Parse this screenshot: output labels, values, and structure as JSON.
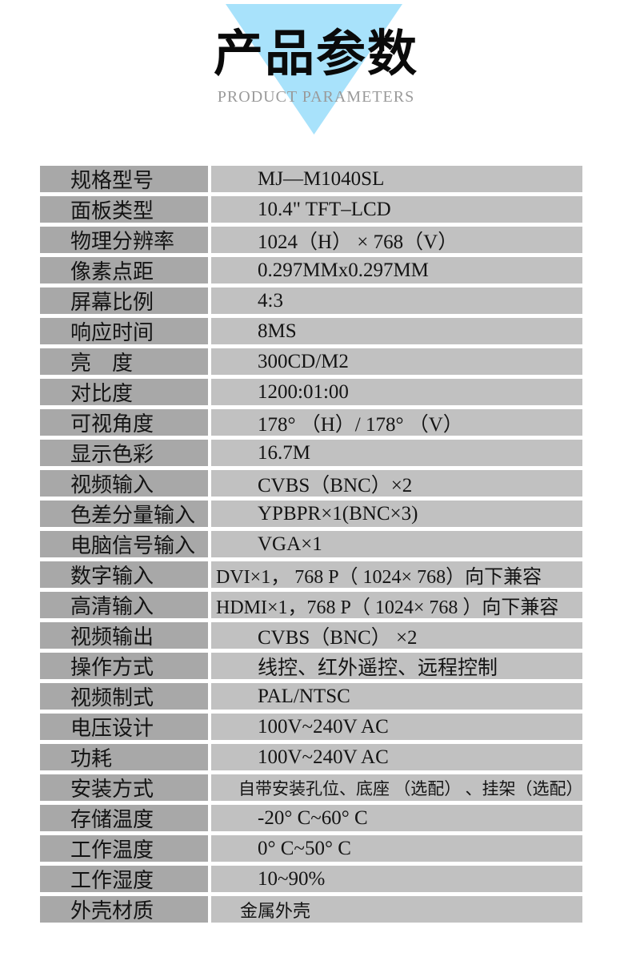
{
  "header": {
    "title": "产品参数",
    "subtitle": "PRODUCT PARAMETERS",
    "triangle_color": "#a8e2fb"
  },
  "table": {
    "label_bg": "#a8a8a8",
    "value_bg": "#c1c1c1",
    "rows": [
      {
        "label": "规格型号",
        "value": "MJ—M1040SL"
      },
      {
        "label": "面板类型",
        "value": "10.4\" TFT–LCD"
      },
      {
        "label": "物理分辨率",
        "value": "1024（H） ×  768（V）"
      },
      {
        "label": "像素点距",
        "value": "0.297MMx0.297MM"
      },
      {
        "label": "屏幕比例",
        "value": "4:3"
      },
      {
        "label": "响应时间",
        "value": "8MS"
      },
      {
        "label": "亮　度",
        "value": "300CD/M2"
      },
      {
        "label": "对比度",
        "value": "1200:01:00"
      },
      {
        "label": "可视角度",
        "value": "178° （H）/ 178° （V）"
      },
      {
        "label": "显示色彩",
        "value": "16.7M"
      },
      {
        "label": "视频输入",
        "value": "CVBS（BNC）×2"
      },
      {
        "label": "色差分量输入",
        "value": "YPBPR×1(BNC×3)"
      },
      {
        "label": "电脑信号输入",
        "value": "VGA×1"
      },
      {
        "label": "数字输入",
        "value": "DVI×1， 768 P（ 1024×  768）向下兼容"
      },
      {
        "label": "高清输入",
        "value": "HDMI×1，768 P（ 1024×  768 ）向下兼容"
      },
      {
        "label": "视频输出",
        "value": "CVBS（BNC） ×2"
      },
      {
        "label": "操作方式",
        "value": "线控、红外遥控、远程控制"
      },
      {
        "label": "视频制式",
        "value": "PAL/NTSC"
      },
      {
        "label": "电压设计",
        "value": "100V~240V AC"
      },
      {
        "label": "功耗",
        "value": "100V~240V AC"
      },
      {
        "label": "安装方式",
        "value": "自带安装孔位、底座 （选配） 、挂架（选配）"
      },
      {
        "label": "存储温度",
        "value": "-20° C~60° C"
      },
      {
        "label": "工作温度",
        "value": "0° C~50° C"
      },
      {
        "label": "工作湿度",
        "value": "10~90%"
      },
      {
        "label": "外壳材质",
        "value": "金属外壳"
      }
    ]
  }
}
